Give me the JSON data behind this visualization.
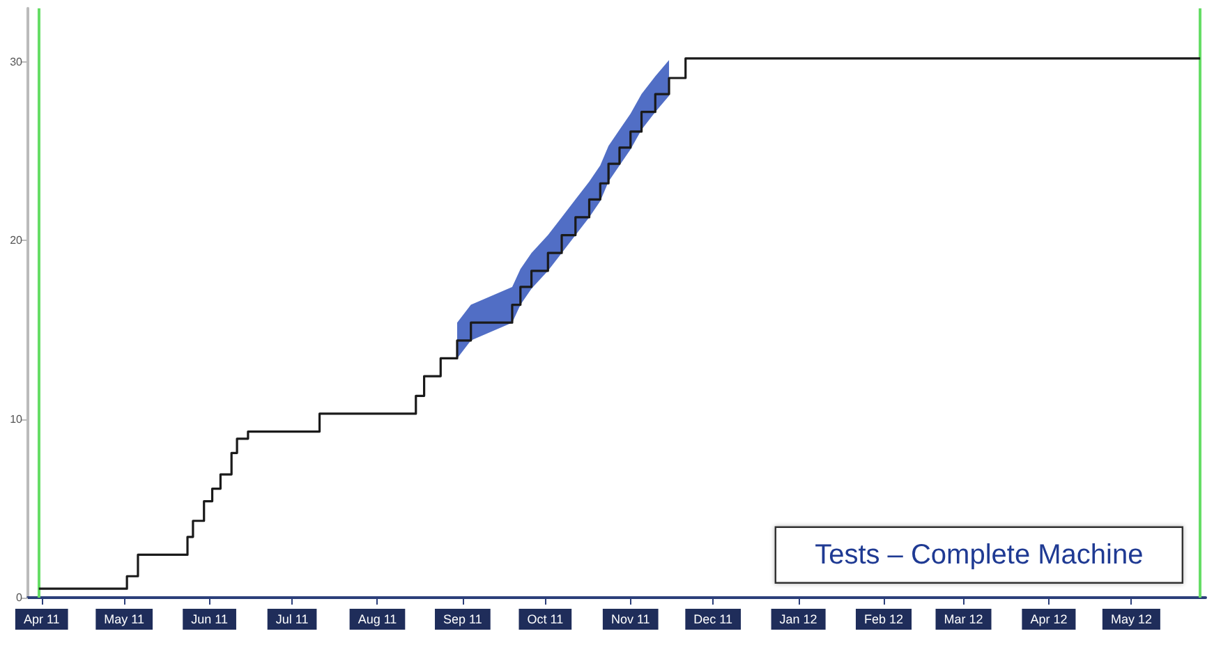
{
  "chart_data": {
    "type": "step",
    "x": [
      "2011-03-31",
      "2011-05-02",
      "2011-05-06",
      "2011-05-24",
      "2011-05-26",
      "2011-05-30",
      "2011-06-02",
      "2011-06-05",
      "2011-06-09",
      "2011-06-11",
      "2011-06-15",
      "2011-07-11",
      "2011-08-15",
      "2011-08-18",
      "2011-08-24",
      "2011-08-30",
      "2011-09-04",
      "2011-09-19",
      "2011-09-22",
      "2011-09-26",
      "2011-10-02",
      "2011-10-07",
      "2011-10-12",
      "2011-10-17",
      "2011-10-21",
      "2011-10-24",
      "2011-10-28",
      "2011-11-01",
      "2011-11-05",
      "2011-11-10",
      "2011-11-15",
      "2011-11-21",
      "2012-05-26"
    ],
    "series": [
      {
        "color": "#1a1a1a",
        "values": [
          0.5,
          1.2,
          2.4,
          3.4,
          4.3,
          5.4,
          6.1,
          6.9,
          8.1,
          8.9,
          9.3,
          10.3,
          11.3,
          12.4,
          13.4,
          14.4,
          15.4,
          16.4,
          17.4,
          18.3,
          19.3,
          20.3,
          21.3,
          22.3,
          23.2,
          24.3,
          25.2,
          26.1,
          27.2,
          28.2,
          29.1,
          30.2,
          30.2
        ],
        "lower": [
          null,
          null,
          null,
          null,
          null,
          null,
          null,
          null,
          null,
          null,
          null,
          null,
          null,
          null,
          null,
          13.4,
          14.4,
          15.4,
          16.4,
          17.3,
          18.3,
          19.3,
          20.3,
          21.3,
          22.2,
          23.3,
          24.2,
          25.1,
          26.2,
          27.2,
          28.1,
          null,
          null
        ],
        "upper": [
          null,
          null,
          null,
          null,
          null,
          null,
          null,
          null,
          null,
          null,
          null,
          null,
          null,
          null,
          null,
          15.4,
          16.4,
          17.4,
          18.4,
          19.3,
          20.3,
          21.3,
          22.3,
          23.3,
          24.2,
          25.3,
          26.2,
          27.1,
          28.2,
          29.2,
          30.1,
          null,
          null
        ]
      }
    ],
    "xlim": [
      "2011-03-27",
      "2012-05-28"
    ],
    "xticks": [
      {
        "value": "2011-04-01",
        "label": "Apr 11"
      },
      {
        "value": "2011-05-01",
        "label": "May 11"
      },
      {
        "value": "2011-06-01",
        "label": "Jun 11"
      },
      {
        "value": "2011-07-01",
        "label": "Jul 11"
      },
      {
        "value": "2011-08-01",
        "label": "Aug 11"
      },
      {
        "value": "2011-09-01",
        "label": "Sep 11"
      },
      {
        "value": "2011-10-01",
        "label": "Oct 11"
      },
      {
        "value": "2011-11-01",
        "label": "Nov 11"
      },
      {
        "value": "2011-12-01",
        "label": "Dec 11"
      },
      {
        "value": "2012-01-01",
        "label": "Jan 12"
      },
      {
        "value": "2012-02-01",
        "label": "Feb 12"
      },
      {
        "value": "2012-03-01",
        "label": "Mar 12"
      },
      {
        "value": "2012-04-01",
        "label": "Apr 12"
      },
      {
        "value": "2012-05-01",
        "label": "May 12"
      }
    ],
    "ylim": [
      0,
      33
    ],
    "yticks": [
      0,
      10,
      20,
      30
    ],
    "ref_lines": [
      {
        "axis": "x",
        "value": "2011-03-31",
        "color": "#66dd66"
      },
      {
        "axis": "x",
        "value": "2012-05-26",
        "color": "#66dd66"
      }
    ],
    "annotations": [
      "Tests – Complete Machine"
    ],
    "grid": false,
    "marker": "none",
    "line_style": "solid"
  }
}
